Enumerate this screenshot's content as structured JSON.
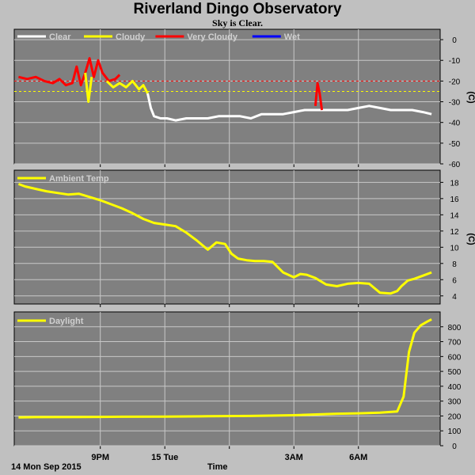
{
  "title": "Riverland Dingo Observatory",
  "subtitle": "Sky is Clear.",
  "date_label": "14 Mon Sep 2015",
  "time_axis_label": "Time",
  "chart_data": [
    {
      "type": "line",
      "panel": "sky",
      "legend": [
        "Clear",
        "Cloudy",
        "Very Cloudy",
        "Wet"
      ],
      "legend_colors": [
        "#ffffff",
        "#ffff00",
        "#ff0000",
        "#0000ff"
      ],
      "ylabel": "(C)",
      "ylim": [
        -60,
        5
      ],
      "yticks": [
        0,
        -10,
        -20,
        -30,
        -40,
        -50,
        -60
      ],
      "threshold_lines": [
        {
          "value": -20,
          "color": "#ff0000"
        },
        {
          "value": -25,
          "color": "#ffff00"
        }
      ],
      "series": [
        {
          "color": "#ff0000",
          "x": [
            17.2,
            17.6,
            18.0,
            18.4,
            18.8,
            19.1,
            19.4,
            19.7,
            19.9,
            20.1,
            20.3,
            20.5,
            20.7,
            20.9,
            21.1,
            21.4,
            21.7,
            21.9
          ],
          "y": [
            -18,
            -19,
            -18,
            -20,
            -21,
            -19,
            -22,
            -21,
            -13,
            -22,
            -16,
            -9,
            -18,
            -10,
            -16,
            -20,
            -19,
            -17
          ]
        },
        {
          "color": "#ffff00",
          "x": [
            20.3,
            20.45,
            20.6
          ],
          "y": [
            -16,
            -30,
            -18
          ]
        },
        {
          "color": "#ffff00",
          "x": [
            21.3,
            21.6,
            21.9,
            22.2,
            22.5,
            22.8,
            23.0,
            23.2
          ],
          "y": [
            -20,
            -23,
            -21,
            -23,
            -20,
            -24,
            -22,
            -26
          ]
        },
        {
          "color": "#ffffff",
          "x": [
            23.2,
            23.35,
            23.5,
            23.8,
            24.1,
            24.5,
            25.0,
            25.5,
            26.0,
            26.5,
            27.0,
            27.5,
            28.0,
            28.5,
            29.0,
            29.5,
            30.0,
            30.5,
            31.0,
            31.5,
            32.0,
            32.5,
            33.0,
            33.5,
            34.0,
            34.5,
            35.0,
            35.5,
            36.0,
            36.4
          ],
          "y": [
            -26,
            -33,
            -37,
            -38,
            -38,
            -39,
            -38,
            -38,
            -38,
            -37,
            -37,
            -37,
            -38,
            -36,
            -36,
            -36,
            -35,
            -34,
            -34,
            -34,
            -34,
            -34,
            -33,
            -32,
            -33,
            -34,
            -34,
            -34,
            -35,
            -36
          ]
        },
        {
          "color": "#ff0000",
          "x": [
            31.0,
            31.1,
            31.2,
            31.3
          ],
          "y": [
            -32,
            -21,
            -26,
            -34
          ]
        }
      ]
    },
    {
      "type": "line",
      "panel": "ambient",
      "legend": [
        "Ambient Temp"
      ],
      "legend_colors": [
        "#ffff00"
      ],
      "ylabel": "(C)",
      "ylim": [
        3,
        19.5
      ],
      "yticks": [
        18,
        16,
        14,
        12,
        10,
        8,
        6,
        4
      ],
      "series": [
        {
          "color": "#ffff00",
          "x": [
            17.2,
            17.5,
            18.0,
            18.5,
            19.0,
            19.5,
            20.0,
            20.5,
            21.0,
            21.5,
            22.0,
            22.5,
            23.0,
            23.5,
            24.0,
            24.5,
            25.0,
            25.5,
            26.0,
            26.4,
            26.8,
            27.1,
            27.4,
            27.8,
            28.2,
            28.6,
            29.0,
            29.5,
            30.0,
            30.3,
            30.6,
            31.0,
            31.5,
            32.0,
            32.5,
            33.0,
            33.5,
            34.0,
            34.5,
            34.8,
            35.0,
            35.3,
            35.6,
            36.0,
            36.4
          ],
          "y": [
            17.8,
            17.5,
            17.2,
            16.9,
            16.7,
            16.5,
            16.6,
            16.2,
            15.8,
            15.3,
            14.8,
            14.2,
            13.5,
            13.0,
            12.8,
            12.6,
            11.8,
            10.8,
            9.7,
            10.6,
            10.4,
            9.2,
            8.6,
            8.4,
            8.3,
            8.3,
            8.2,
            6.9,
            6.3,
            6.7,
            6.6,
            6.2,
            5.4,
            5.2,
            5.5,
            5.6,
            5.5,
            4.4,
            4.3,
            4.6,
            5.2,
            5.9,
            6.1,
            6.5,
            6.9
          ]
        }
      ]
    },
    {
      "type": "line",
      "panel": "daylight",
      "legend": [
        "Daylight"
      ],
      "legend_colors": [
        "#ffff00"
      ],
      "ylim": [
        0,
        900
      ],
      "yticks": [
        0,
        100,
        200,
        300,
        400,
        500,
        600,
        700,
        800
      ],
      "series": [
        {
          "color": "#ffff00",
          "x": [
            17.2,
            18,
            20,
            22,
            24,
            26,
            28,
            30,
            32,
            33,
            34,
            34.8,
            35.1,
            35.35,
            35.6,
            35.9,
            36.2,
            36.4
          ],
          "y": [
            190,
            192,
            193,
            195,
            196,
            198,
            200,
            205,
            215,
            218,
            222,
            230,
            330,
            630,
            760,
            810,
            835,
            850
          ]
        }
      ]
    }
  ],
  "x_axis": {
    "xlim": [
      17.0,
      36.8
    ],
    "ticks": [
      {
        "value": 21,
        "label": "9PM"
      },
      {
        "value": 24,
        "label": "15 Tue"
      },
      {
        "value": 27,
        "label": ""
      },
      {
        "value": 30,
        "label": "3AM"
      },
      {
        "value": 33,
        "label": "6AM"
      }
    ]
  }
}
